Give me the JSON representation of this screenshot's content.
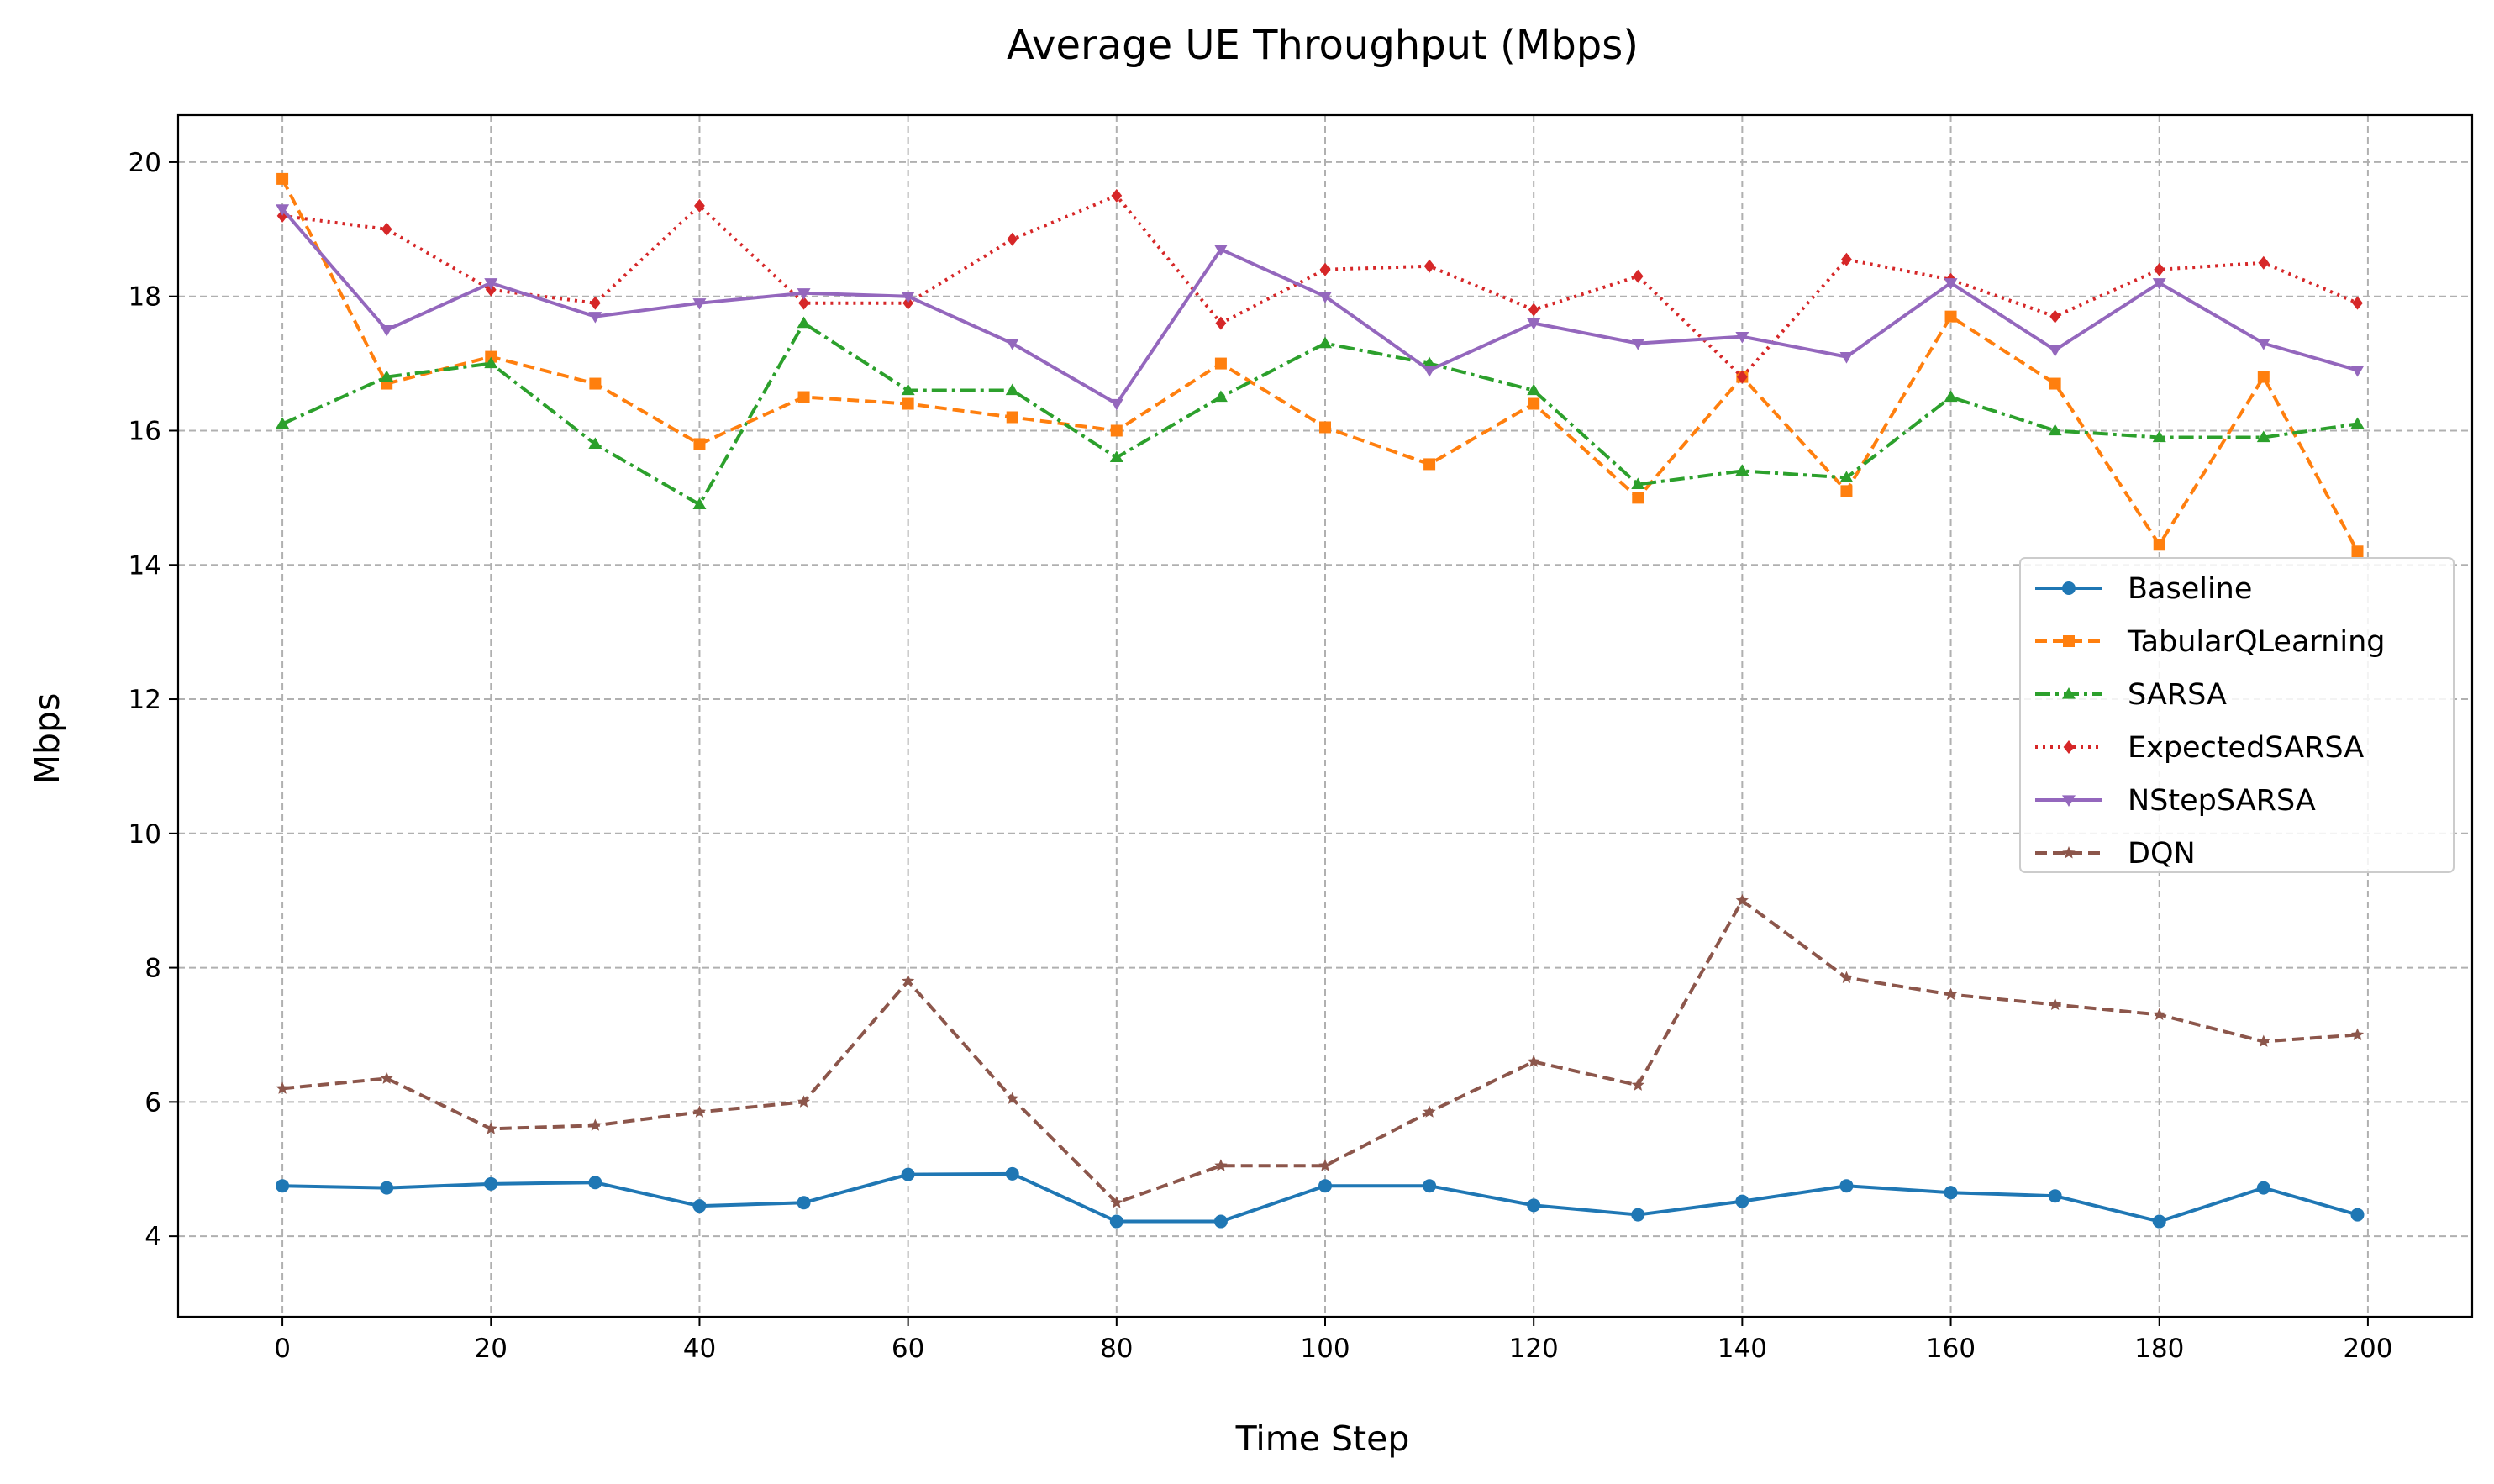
{
  "chart_data": {
    "type": "line",
    "title": "Average UE Throughput (Mbps)",
    "xlabel": "Time Step",
    "ylabel": "Mbps",
    "xlim": [
      -10,
      210
    ],
    "ylim": [
      2.8,
      20.7
    ],
    "xticks": [
      0,
      20,
      40,
      60,
      80,
      100,
      120,
      140,
      160,
      180,
      200
    ],
    "yticks": [
      4,
      6,
      8,
      10,
      12,
      14,
      16,
      18,
      20
    ],
    "grid": true,
    "legend_position": "center-right",
    "series": [
      {
        "name": "Baseline",
        "color": "#1f77b4",
        "dash": "solid",
        "marker": "circle",
        "x": [
          0,
          10,
          20,
          30,
          40,
          50,
          60,
          70,
          80,
          90,
          100,
          110,
          120,
          130,
          140,
          150,
          160,
          170,
          180,
          190,
          199
        ],
        "values": [
          4.75,
          4.72,
          4.78,
          4.8,
          4.45,
          4.5,
          4.92,
          4.93,
          4.22,
          4.22,
          4.75,
          4.75,
          4.46,
          4.32,
          4.52,
          4.75,
          4.65,
          4.6,
          4.22,
          4.72,
          4.32
        ]
      },
      {
        "name": "TabularQLearning",
        "color": "#ff7f0e",
        "dash": "dashed",
        "marker": "square",
        "x": [
          0,
          10,
          20,
          30,
          40,
          50,
          60,
          70,
          80,
          90,
          100,
          110,
          120,
          130,
          140,
          150,
          160,
          170,
          180,
          190,
          199
        ],
        "values": [
          19.75,
          16.7,
          17.1,
          16.7,
          15.8,
          16.5,
          16.4,
          16.2,
          16.0,
          17.0,
          16.05,
          15.5,
          16.4,
          15.0,
          16.8,
          15.1,
          17.7,
          16.7,
          14.3,
          16.8,
          14.2
        ]
      },
      {
        "name": "SARSA",
        "color": "#2ca02c",
        "dash": "dashdot",
        "marker": "triangle",
        "x": [
          0,
          10,
          20,
          30,
          40,
          50,
          60,
          70,
          80,
          90,
          100,
          110,
          120,
          130,
          140,
          150,
          160,
          170,
          180,
          190,
          199
        ],
        "values": [
          16.1,
          16.8,
          17.0,
          15.8,
          14.9,
          17.6,
          16.6,
          16.6,
          15.6,
          16.5,
          17.3,
          17.0,
          16.6,
          15.2,
          15.4,
          15.3,
          16.5,
          16.0,
          15.9,
          15.9,
          16.1
        ]
      },
      {
        "name": "ExpectedSARSA",
        "color": "#d62728",
        "dash": "dotted",
        "marker": "diamond",
        "x": [
          0,
          10,
          20,
          30,
          40,
          50,
          60,
          70,
          80,
          90,
          100,
          110,
          120,
          130,
          140,
          150,
          160,
          170,
          180,
          190,
          199
        ],
        "values": [
          19.2,
          19.0,
          18.1,
          17.9,
          19.35,
          17.9,
          17.9,
          18.85,
          19.5,
          17.6,
          18.4,
          18.45,
          17.8,
          18.3,
          16.8,
          18.55,
          18.25,
          17.7,
          18.4,
          18.5,
          17.9
        ]
      },
      {
        "name": "NStepSARSA",
        "color": "#9467bd",
        "dash": "solid",
        "marker": "triangle-down",
        "x": [
          0,
          10,
          20,
          30,
          40,
          50,
          60,
          70,
          80,
          90,
          100,
          110,
          120,
          130,
          140,
          150,
          160,
          170,
          180,
          190,
          199
        ],
        "values": [
          19.3,
          17.5,
          18.2,
          17.7,
          17.9,
          18.05,
          18.0,
          17.3,
          16.4,
          18.7,
          18.0,
          16.9,
          17.6,
          17.3,
          17.4,
          17.1,
          18.2,
          17.2,
          18.2,
          17.3,
          16.9
        ]
      },
      {
        "name": "DQN",
        "color": "#8c564b",
        "dash": "dashed",
        "marker": "star",
        "x": [
          0,
          10,
          20,
          30,
          40,
          50,
          60,
          70,
          80,
          90,
          100,
          110,
          120,
          130,
          140,
          150,
          160,
          170,
          180,
          190,
          199
        ],
        "values": [
          6.2,
          6.35,
          5.6,
          5.65,
          5.85,
          6.0,
          7.8,
          6.05,
          4.5,
          5.05,
          5.05,
          5.85,
          6.6,
          6.25,
          9.0,
          7.85,
          7.6,
          7.45,
          7.3,
          6.9,
          7.0
        ]
      }
    ]
  }
}
